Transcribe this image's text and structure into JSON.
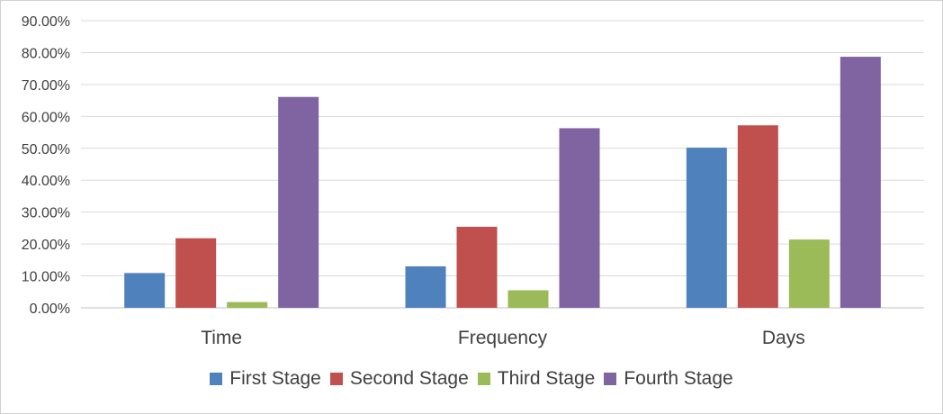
{
  "chart_data": {
    "type": "bar",
    "categories": [
      "Time",
      "Frequency",
      "Days"
    ],
    "series": [
      {
        "name": "First Stage",
        "color": "#4F81BD",
        "values": [
          10.9,
          13.0,
          50.2
        ]
      },
      {
        "name": "Second Stage",
        "color": "#C0504D",
        "values": [
          21.8,
          25.4,
          57.2
        ]
      },
      {
        "name": "Third Stage",
        "color": "#9BBB59",
        "values": [
          1.8,
          5.5,
          21.4
        ]
      },
      {
        "name": "Fourth Stage",
        "color": "#8064A2",
        "values": [
          66.1,
          56.3,
          78.7
        ]
      }
    ],
    "ylim": [
      0,
      90
    ],
    "yticks": [
      "0.00%",
      "10.00%",
      "20.00%",
      "30.00%",
      "40.00%",
      "50.00%",
      "60.00%",
      "70.00%",
      "80.00%",
      "90.00%"
    ],
    "grid": true,
    "legend_position": "bottom"
  }
}
